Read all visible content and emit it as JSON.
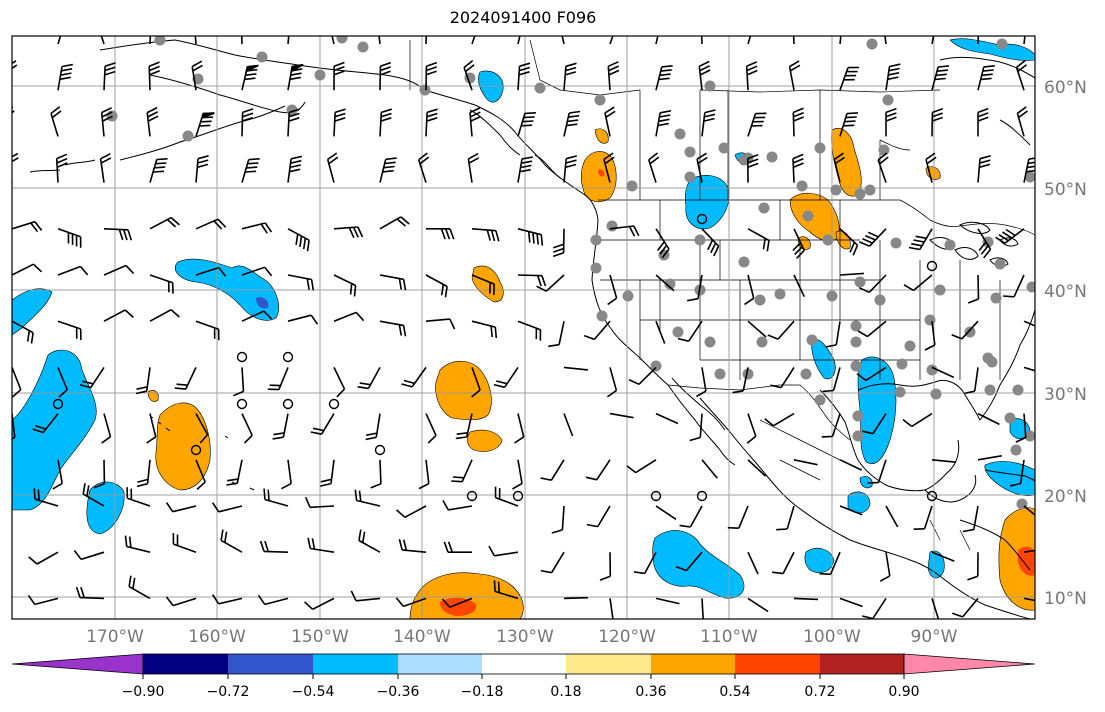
{
  "title": "2024091400 F096",
  "map": {
    "lon_range": [
      -180,
      -80
    ],
    "lat_range": [
      8,
      65
    ],
    "grid": true,
    "lon_labels": [
      "170°W",
      "160°W",
      "150°W",
      "140°W",
      "130°W",
      "120°W",
      "110°W",
      "100°W",
      "90°W"
    ],
    "lat_labels": [
      "10°N",
      "20°N",
      "30°N",
      "40°N",
      "50°N",
      "60°N"
    ],
    "lat_label_side": "right",
    "lon_label_side": "bottom",
    "overlays": [
      "coastlines",
      "country borders",
      "state borders",
      "wind barbs",
      "gray station dots",
      "shaded anomaly contours"
    ]
  },
  "colorbar": {
    "orientation": "horizontal",
    "extend": "both",
    "tick_labels": [
      "−0.90",
      "−0.72",
      "−0.54",
      "−0.36",
      "−0.18",
      "0.18",
      "0.36",
      "0.54",
      "0.72",
      "0.90"
    ],
    "colors": [
      "#9933cc",
      "#000080",
      "#3355cc",
      "#00bbff",
      "#aaddff",
      "#ffffff",
      "#ffe98a",
      "#ffa500",
      "#ff4500",
      "#b22222",
      "#ff88aa"
    ]
  },
  "shading_colors": {
    "light_blue": "#00bbff",
    "orange": "#ffa500",
    "red_orange": "#ff4500",
    "dark_blue": "#3355cc"
  }
}
